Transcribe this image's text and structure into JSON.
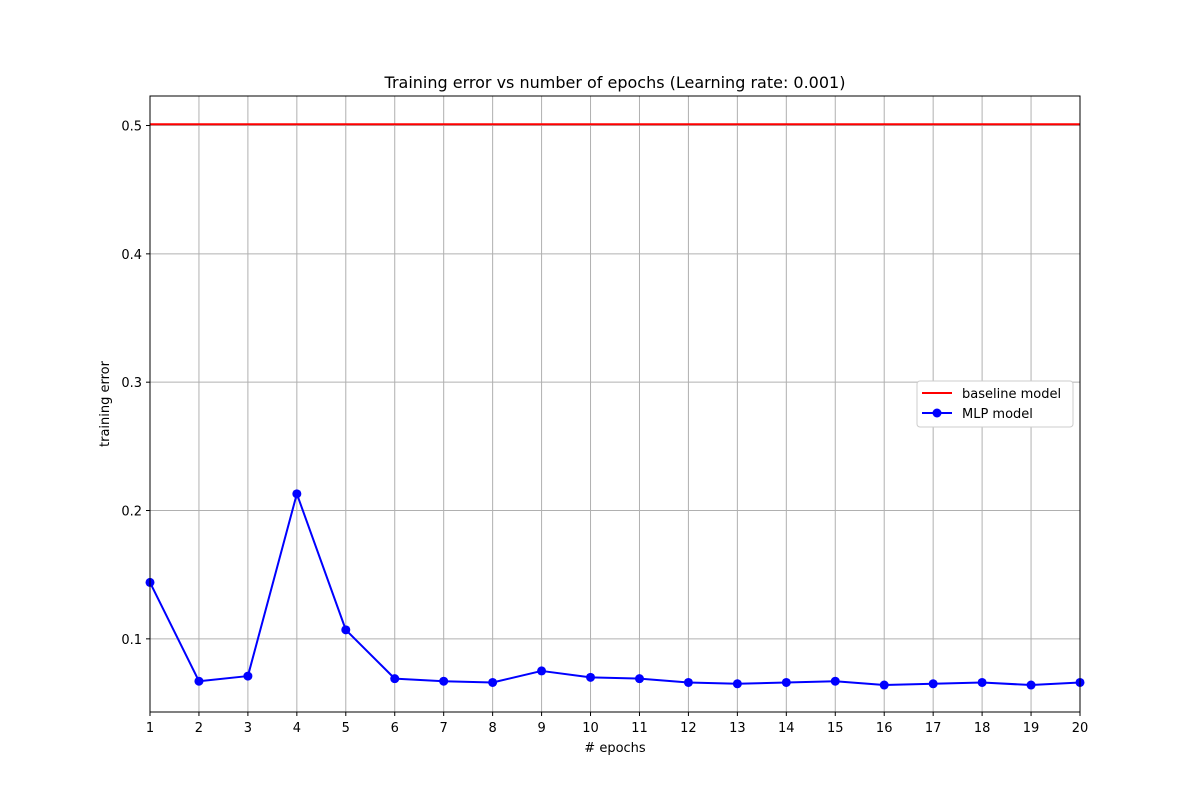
{
  "chart_data": {
    "type": "line",
    "title": "Training error vs number of epochs (Learning rate: 0.001)",
    "xlabel": "# epochs",
    "ylabel": "training error",
    "xlim": [
      1,
      20
    ],
    "ylim": [
      0.043,
      0.523
    ],
    "xticks": [
      1,
      2,
      3,
      4,
      5,
      6,
      7,
      8,
      9,
      10,
      11,
      12,
      13,
      14,
      15,
      16,
      17,
      18,
      19,
      20
    ],
    "yticks": [
      0.1,
      0.2,
      0.3,
      0.4,
      0.5
    ],
    "ytick_labels": [
      "0.1",
      "0.2",
      "0.3",
      "0.4",
      "0.5"
    ],
    "grid": true,
    "legend_position": "center-right",
    "series": [
      {
        "name": "baseline model",
        "color": "#ff0000",
        "marker": "none",
        "x": [
          1,
          20
        ],
        "values": [
          0.501,
          0.501
        ]
      },
      {
        "name": "MLP model",
        "color": "#0000ff",
        "marker": "circle",
        "x": [
          1,
          2,
          3,
          4,
          5,
          6,
          7,
          8,
          9,
          10,
          11,
          12,
          13,
          14,
          15,
          16,
          17,
          18,
          19,
          20
        ],
        "values": [
          0.144,
          0.067,
          0.071,
          0.213,
          0.107,
          0.069,
          0.067,
          0.066,
          0.075,
          0.07,
          0.069,
          0.066,
          0.065,
          0.066,
          0.067,
          0.064,
          0.065,
          0.066,
          0.064,
          0.066
        ]
      }
    ]
  }
}
